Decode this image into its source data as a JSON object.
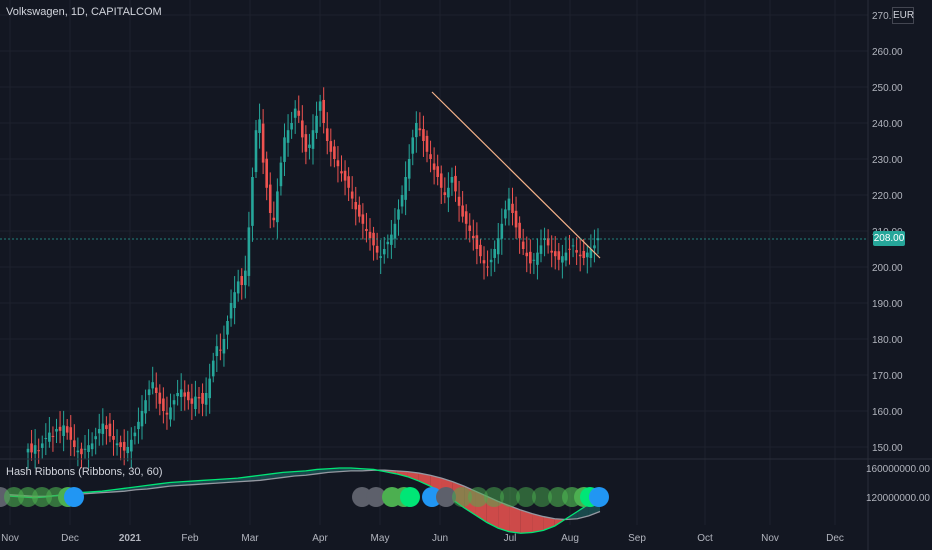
{
  "header": {
    "title": "Volkswagen, 1D, CAPITALCOM",
    "currency": "EUR"
  },
  "indicator": {
    "title": "Hash Ribbons (Ribbons, 30, 60)"
  },
  "last_price_label": "208.00",
  "colors": {
    "up": "#26a69a",
    "down": "#ef5350",
    "background": "#131722",
    "trendline": "#f5b38a",
    "dot_blue": "#2196f3"
  },
  "chart_data": [
    {
      "type": "candlestick",
      "title": "Volkswagen, 1D, CAPITALCOM",
      "y_axis": {
        "ticks": [
          "150.00",
          "160.00",
          "170.00",
          "180.00",
          "190.00",
          "200.00",
          "210.00",
          "220.00",
          "230.00",
          "240.00",
          "250.00",
          "260.00",
          "270.00"
        ],
        "ylim": [
          145,
          272
        ]
      },
      "x_axis": {
        "ticks": [
          "Nov",
          "Dec",
          "2021",
          "Feb",
          "Mar",
          "Apr",
          "May",
          "Jun",
          "Jul",
          "Aug",
          "Sep",
          "Oct",
          "Nov",
          "Dec"
        ]
      },
      "last_price": 208.0,
      "closes": [
        149.5,
        148.5,
        150.5,
        149.0,
        151.0,
        152.5,
        154.0,
        153.0,
        155.0,
        154.5,
        156.0,
        154.0,
        152.0,
        150.0,
        149.0,
        148.0,
        149.5,
        150.5,
        151.0,
        153.0,
        155.0,
        156.5,
        155.0,
        153.0,
        152.0,
        151.0,
        150.0,
        149.0,
        150.0,
        152.0,
        154.0,
        157.0,
        160.0,
        163.0,
        166.0,
        168.0,
        165.0,
        162.0,
        160.0,
        159.0,
        161.0,
        163.0,
        165.0,
        166.0,
        164.0,
        163.0,
        162.0,
        164.0,
        163.5,
        162.0,
        165.0,
        169.0,
        174.0,
        178.0,
        177.0,
        180.0,
        185.0,
        190.0,
        193.0,
        196.0,
        195.0,
        199.0,
        211.0,
        225.0,
        238.0,
        241.0,
        229.0,
        222.0,
        215.0,
        213.0,
        221.0,
        229.0,
        236.0,
        238.0,
        240.0,
        244.0,
        242.0,
        236.0,
        232.0,
        234.0,
        238.0,
        242.0,
        246.0,
        240.0,
        235.0,
        232.0,
        230.0,
        228.0,
        226.0,
        224.0,
        222.0,
        219.0,
        216.0,
        214.0,
        212.0,
        210.0,
        208.0,
        206.0,
        204.0,
        203.0,
        205.0,
        207.0,
        209.0,
        212.0,
        216.0,
        220.0,
        225.0,
        230.0,
        236.0,
        240.0,
        238.0,
        235.0,
        232.0,
        230.0,
        227.0,
        225.0,
        222.0,
        220.0,
        222.0,
        225.0,
        221.0,
        217.0,
        214.0,
        212.0,
        210.0,
        208.0,
        205.0,
        203.0,
        201.0,
        200.0,
        202.0,
        205.0,
        208.0,
        212.0,
        216.0,
        219.0,
        215.0,
        211.0,
        208.0,
        205.0,
        203.0,
        201.0,
        202.0,
        204.0,
        206.0,
        208.0,
        206.0,
        204.0,
        203.0,
        202.0,
        203.0,
        204.0,
        205.0,
        206.0,
        204.0,
        203.0,
        202.5,
        204.0,
        205.0,
        206.0,
        208.0
      ]
    },
    {
      "type": "area",
      "title": "Hash Ribbons (Ribbons, 30, 60)",
      "y_axis": {
        "ticks": [
          "160000000.00",
          "120000000.00"
        ]
      },
      "series": [
        {
          "name": "Ribbons 30",
          "values": [
            122,
            121,
            120,
            119,
            120,
            122,
            124,
            126,
            127,
            128,
            130,
            132,
            134,
            136,
            138,
            140,
            141,
            142,
            143,
            144,
            145,
            146,
            148,
            150,
            152,
            154,
            155,
            156,
            158,
            159,
            160,
            160,
            159,
            158,
            155,
            152,
            148,
            142,
            135,
            126,
            116,
            105,
            95,
            85,
            77,
            72,
            70,
            71,
            74,
            80,
            90,
            100,
            110,
            118
          ]
        },
        {
          "name": "Ribbons 60",
          "values": [
            124,
            123,
            122,
            121,
            121,
            122,
            123,
            124,
            125,
            126,
            127,
            128,
            130,
            131,
            133,
            135,
            136,
            137,
            138,
            139,
            140,
            141,
            142,
            143,
            145,
            147,
            149,
            150,
            152,
            154,
            155,
            156,
            156,
            157,
            157,
            156,
            155,
            153,
            150,
            146,
            141,
            135,
            128,
            121,
            114,
            108,
            102,
            97,
            93,
            90,
            89,
            90,
            94,
            100
          ]
        }
      ]
    }
  ]
}
